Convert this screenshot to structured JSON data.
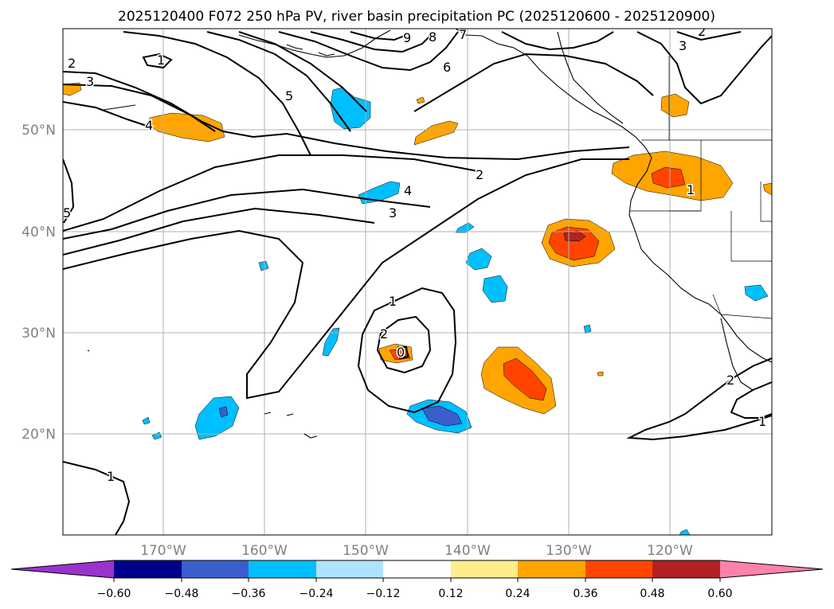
{
  "title": "2025120400 F072 250 hPa PV, river basin precipitation PC (2025120600 - 2025120900)",
  "map": {
    "extent": {
      "lon": [
        -180,
        -110
      ],
      "lat": [
        10,
        60
      ]
    },
    "lat_labels": [
      "20°N",
      "30°N",
      "40°N",
      "50°N"
    ],
    "lon_labels": [
      "170°W",
      "160°W",
      "150°W",
      "140°W",
      "130°W",
      "120°W"
    ],
    "gridline_color": "#b0b0b0",
    "contour_color": "#000000",
    "land_color": "#000000"
  },
  "pv_contour_labels": [
    "9",
    "8",
    "7",
    "6",
    "5",
    "4",
    "3",
    "2",
    "1",
    "0",
    "1",
    "2",
    "3",
    "4",
    "5",
    "2",
    "2",
    "1",
    "3",
    "2",
    "1",
    "1"
  ],
  "colorbar": {
    "ticks": [
      "−0.60",
      "−0.48",
      "−0.36",
      "−0.24",
      "−0.12",
      "0.12",
      "0.24",
      "0.36",
      "0.48",
      "0.60"
    ],
    "colors": [
      "#9933cc",
      "#00008b",
      "#3a5fcd",
      "#00bfff",
      "#b0e2ff",
      "#ffffff",
      "#ffec8b",
      "#ffa500",
      "#ff4500",
      "#b22222",
      "#ff82ab"
    ]
  },
  "precip_palette": {
    "neg_weak": "#00bfff",
    "neg_mid": "#3a5fcd",
    "pos_weak": "#ffa500",
    "pos_mid": "#ff4500",
    "pos_strong": "#b22222"
  }
}
